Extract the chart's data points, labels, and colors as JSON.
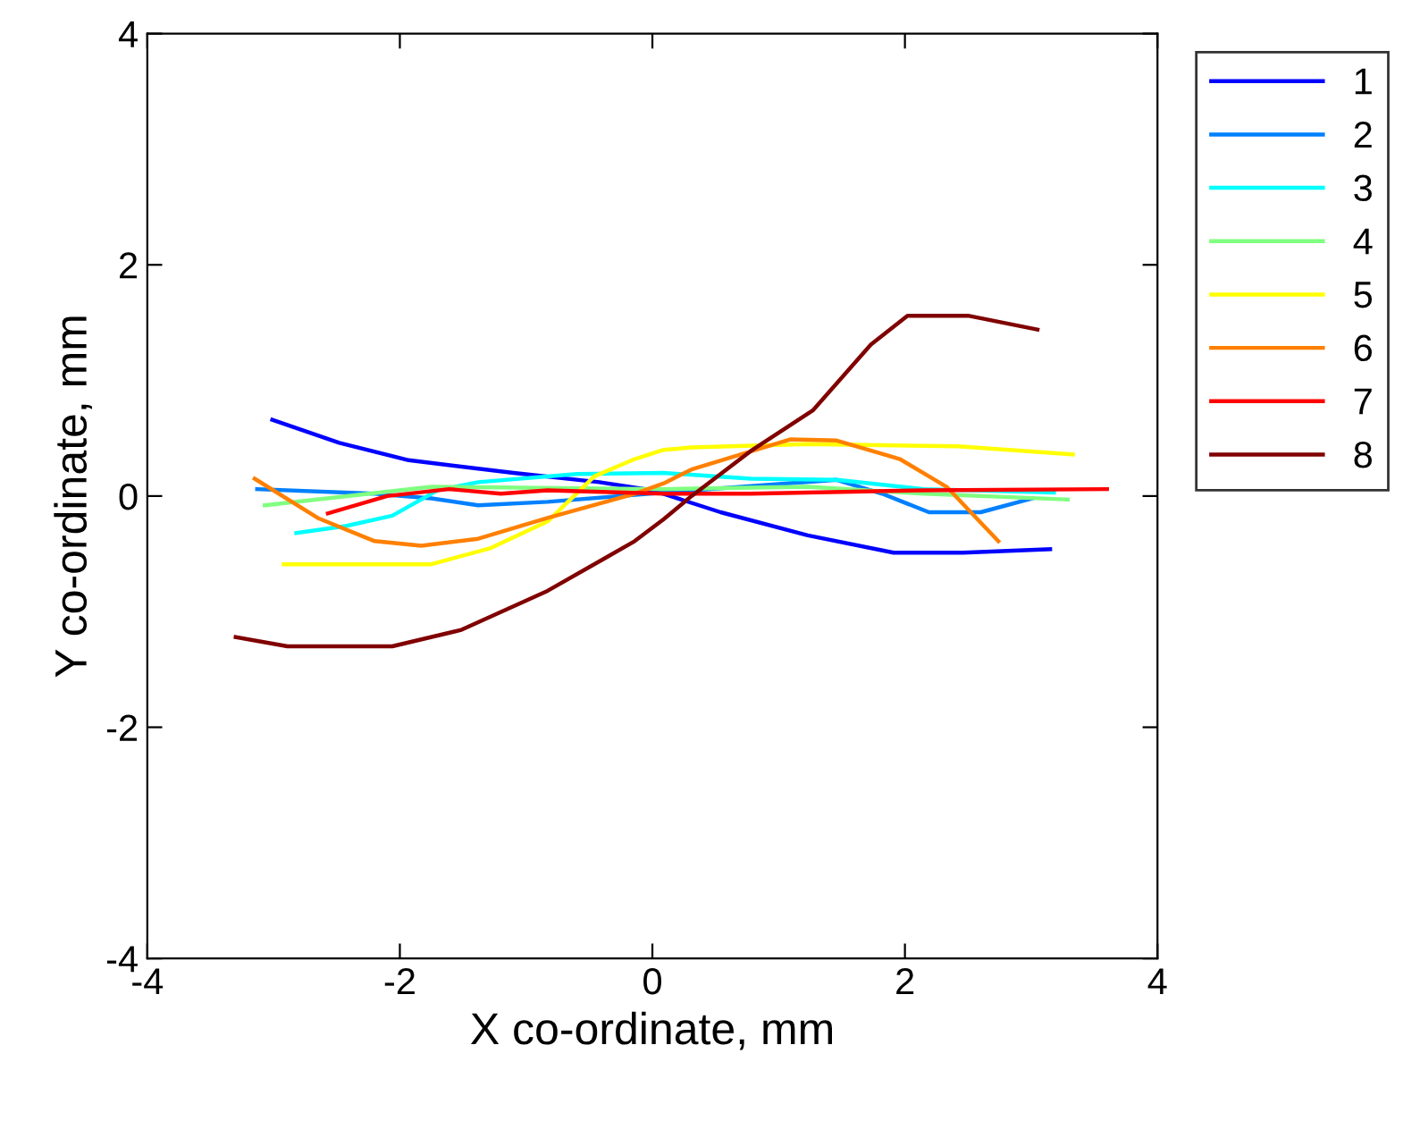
{
  "chart_data": {
    "type": "line",
    "xlabel": "X co-ordinate, mm",
    "ylabel": "Y co-ordinate, mm",
    "xlim": [
      -4,
      4
    ],
    "ylim": [
      -4,
      4
    ],
    "xticks": [
      -4,
      -2,
      0,
      2,
      4
    ],
    "yticks": [
      -4,
      -2,
      0,
      2,
      4
    ],
    "grid": false,
    "legend": "top right",
    "marker": "none",
    "line_style": "solid",
    "series": [
      {
        "name": "1",
        "color": "#0000ff",
        "x": [
          -3.01,
          -2.48,
          -1.93,
          -1.1,
          -0.42,
          0,
          0.54,
          1.23,
          1.91,
          2.46,
          3.15
        ],
        "values": [
          0.66,
          0.46,
          0.31,
          0.2,
          0.12,
          0.05,
          -0.14,
          -0.34,
          -0.49,
          -0.49,
          -0.46
        ]
      },
      {
        "name": "2",
        "color": "#0080ff",
        "x": [
          -3.13,
          -2.2,
          -1.75,
          -1.38,
          -0.83,
          0.09,
          1.46,
          1.82,
          2.19,
          2.6,
          3.01
        ],
        "values": [
          0.06,
          0.02,
          -0.02,
          -0.08,
          -0.05,
          0.03,
          0.14,
          0.02,
          -0.14,
          -0.14,
          -0.02
        ]
      },
      {
        "name": "3",
        "color": "#00ffff",
        "x": [
          -2.82,
          -2.43,
          -2.06,
          -1.7,
          -1.38,
          -0.6,
          0.09,
          0.78,
          1.46,
          2.15,
          3.18
        ],
        "values": [
          -0.32,
          -0.26,
          -0.17,
          0.05,
          0.12,
          0.19,
          0.2,
          0.15,
          0.14,
          0.06,
          0.03
        ]
      },
      {
        "name": "4",
        "color": "#80ff80",
        "x": [
          -3.07,
          -1.75,
          0.09,
          1.23,
          2.15,
          3.29
        ],
        "values": [
          -0.08,
          0.08,
          0.06,
          0.08,
          0.02,
          -0.03
        ]
      },
      {
        "name": "5",
        "color": "#ffff00",
        "x": [
          -2.92,
          -1.75,
          -1.28,
          -0.83,
          -0.46,
          -0.14,
          0.09,
          0.31,
          1.23,
          2.42,
          3.33
        ],
        "values": [
          -0.59,
          -0.59,
          -0.45,
          -0.22,
          0.17,
          0.32,
          0.4,
          0.42,
          0.45,
          0.43,
          0.36
        ]
      },
      {
        "name": "6",
        "color": "#ff8000",
        "x": [
          -3.15,
          -2.65,
          -2.2,
          -1.83,
          -1.38,
          -0.83,
          -0.14,
          0.09,
          0.31,
          1.09,
          1.46,
          1.96,
          2.33,
          2.74
        ],
        "values": [
          0.15,
          -0.19,
          -0.39,
          -0.43,
          -0.37,
          -0.19,
          0.02,
          0.11,
          0.23,
          0.49,
          0.48,
          0.32,
          0.08,
          -0.39
        ]
      },
      {
        "name": "7",
        "color": "#ff0000",
        "x": [
          -2.57,
          -2.1,
          -1.61,
          -1.2,
          -0.83,
          0.09,
          0.78,
          2.15,
          3.6
        ],
        "values": [
          -0.15,
          0,
          0.06,
          0.02,
          0.05,
          0.02,
          0.02,
          0.05,
          0.06
        ]
      },
      {
        "name": "8",
        "color": "#800000",
        "x": [
          -3.3,
          -2.89,
          -2.06,
          -1.52,
          -0.83,
          -0.38,
          -0.14,
          0.09,
          0.31,
          0.78,
          1.27,
          1.73,
          2.02,
          2.5,
          3.05
        ],
        "values": [
          -1.22,
          -1.3,
          -1.3,
          -1.16,
          -0.82,
          -0.54,
          -0.39,
          -0.2,
          0,
          0.39,
          0.74,
          1.31,
          1.56,
          1.56,
          1.44
        ]
      }
    ]
  }
}
